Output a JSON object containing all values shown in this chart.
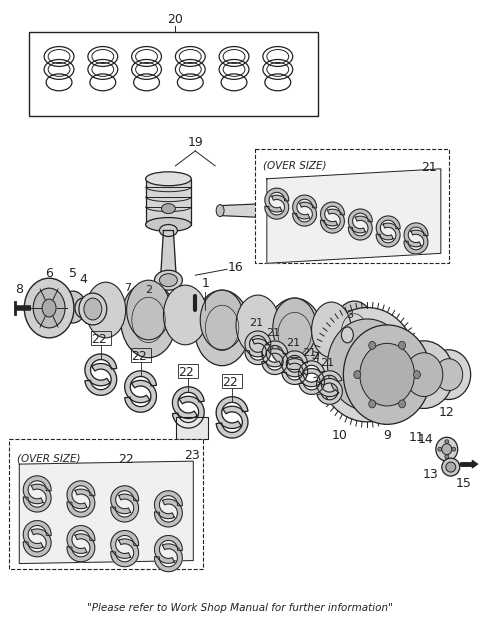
{
  "footer": "\"Please refer to Work Shop Manual for further information\"",
  "bg_color": "#ffffff",
  "fig_width": 4.8,
  "fig_height": 6.25,
  "dpi": 100
}
